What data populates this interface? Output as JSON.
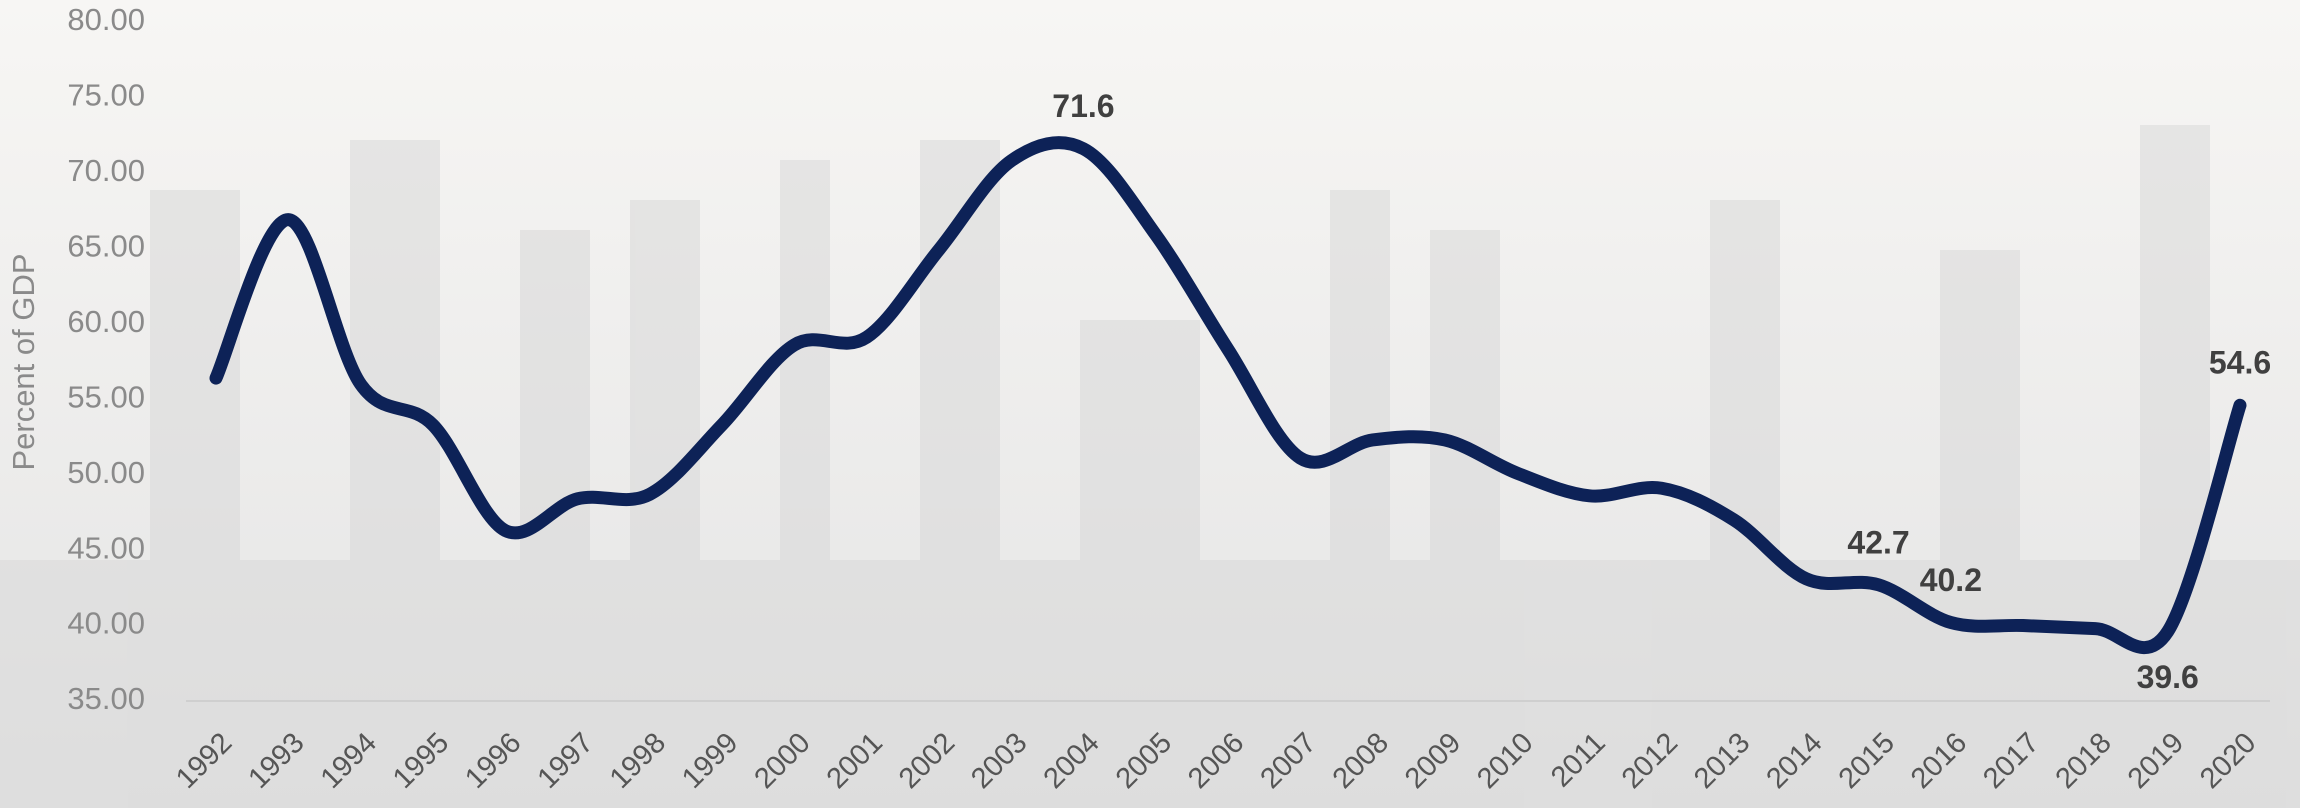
{
  "chart_data": {
    "type": "line",
    "y_label": "Percent of GDP",
    "categories": [
      "1992",
      "1993",
      "1994",
      "1995",
      "1996",
      "1997",
      "1998",
      "1999",
      "2000",
      "2001",
      "2002",
      "2003",
      "2004",
      "2005",
      "2006",
      "2007",
      "2008",
      "2009",
      "2010",
      "2011",
      "2012",
      "2013",
      "2014",
      "2015",
      "2016",
      "2017",
      "2018",
      "2019",
      "2020"
    ],
    "values": [
      56.4,
      66.9,
      56.0,
      53.3,
      46.3,
      48.4,
      48.7,
      53.3,
      58.6,
      59.1,
      64.9,
      70.8,
      71.6,
      65.9,
      58.3,
      51.1,
      52.3,
      52.3,
      50.1,
      48.6,
      49.1,
      47.0,
      43.1,
      42.7,
      40.2,
      40.0,
      39.8,
      39.6,
      54.6
    ],
    "value_labels": [
      null,
      null,
      null,
      null,
      null,
      null,
      null,
      null,
      null,
      null,
      null,
      null,
      "71.6",
      null,
      null,
      null,
      null,
      null,
      null,
      null,
      null,
      null,
      null,
      "42.7",
      "40.2",
      null,
      null,
      "39.6",
      "54.6"
    ],
    "color": "#0d2257",
    "ylim": [
      35,
      80
    ],
    "yticks": [
      {
        "value": 35,
        "label": "35.00"
      },
      {
        "value": 40,
        "label": "40.00"
      },
      {
        "value": 45,
        "label": "45.00"
      },
      {
        "value": 50,
        "label": "50.00"
      },
      {
        "value": 55,
        "label": "55.00"
      },
      {
        "value": 60,
        "label": "60.00"
      },
      {
        "value": 65,
        "label": "65.00"
      },
      {
        "value": 70,
        "label": "70.00"
      },
      {
        "value": 75,
        "label": "75.00"
      },
      {
        "value": 80,
        "label": "80.00"
      }
    ],
    "grid": false
  }
}
